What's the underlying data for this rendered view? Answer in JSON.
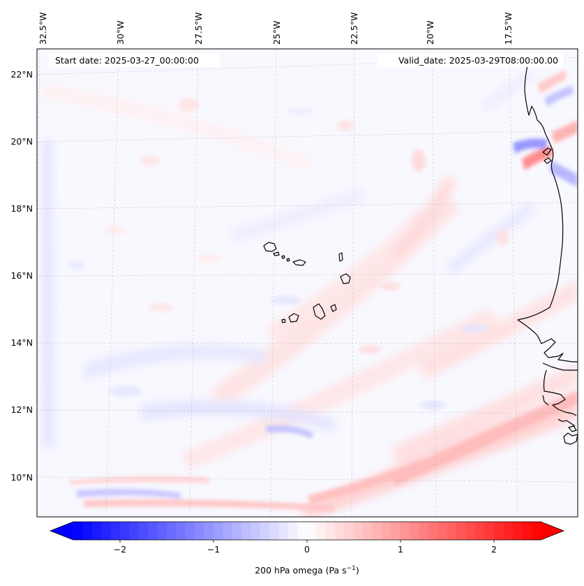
{
  "map": {
    "info": {
      "start_date": "Start date: 2025-03-27_00:00:00",
      "valid_date": "Valid_date: 2025-03-29T08:00:00.00"
    },
    "lon_labels": [
      "32.5°W",
      "30°W",
      "27.5°W",
      "25°W",
      "22.5°W",
      "20°W",
      "17.5°W"
    ],
    "lat_labels": [
      "22°N",
      "20°N",
      "18°N",
      "16°N",
      "14°N",
      "12°N",
      "10°N"
    ],
    "colorbar": {
      "label_prefix": "200 hPa omega (Pa s",
      "label_exp": "−1",
      "label_suffix": ")",
      "ticks": [
        "−2",
        "−1",
        "0",
        "1",
        "2"
      ],
      "tick_values": [
        -2,
        -1,
        0,
        1,
        2
      ],
      "range": [
        -2.5,
        2.5
      ],
      "n_levels": 50,
      "low_color": "#0000ff",
      "high_color": "#ff0000"
    },
    "colors": {
      "background_field": "#f8f8ff",
      "coast": "#000000"
    }
  }
}
